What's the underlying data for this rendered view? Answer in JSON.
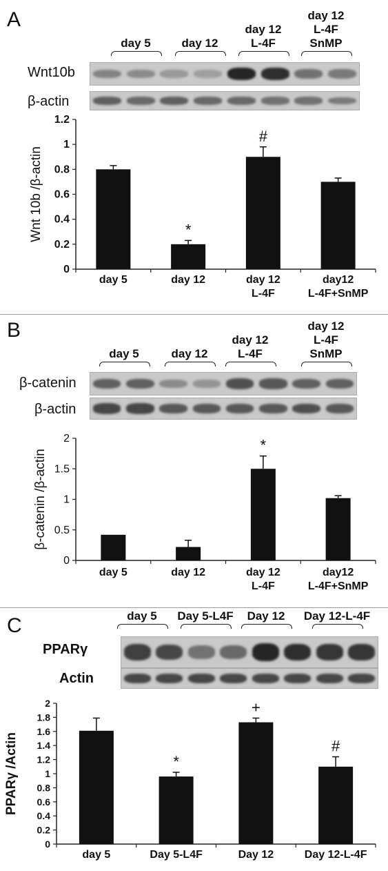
{
  "panels": [
    {
      "letter": "A",
      "group_labels": [
        "day 5",
        "day 12",
        "day 12\nL-4F",
        "day 12\nL-4F\nSnMP"
      ],
      "blot_labels": [
        "Wnt10b",
        "β-actin"
      ],
      "blot_intensity": [
        [
          0.35,
          0.3,
          0.22,
          0.18,
          0.9,
          0.85,
          0.45,
          0.4
        ],
        [
          0.55,
          0.5,
          0.55,
          0.5,
          0.5,
          0.45,
          0.45,
          0.4
        ]
      ],
      "chart_data": {
        "type": "bar",
        "categories": [
          "day 5",
          "day 12",
          "day 12\nL-4F",
          "day12\nL-4F+SnMP"
        ],
        "values": [
          0.8,
          0.2,
          0.9,
          0.7
        ],
        "errors": [
          0.03,
          0.03,
          0.08,
          0.03
        ],
        "annotations": [
          "",
          "*",
          "#",
          ""
        ],
        "ylabel": "Wnt 10b /β-actin",
        "ylim": [
          0,
          1.2
        ],
        "yticks": [
          "0",
          "0.2",
          "0.4",
          "0.6",
          "0.8",
          "1",
          "1.2"
        ],
        "ytick_values": [
          0,
          0.2,
          0.4,
          0.6,
          0.8,
          1,
          1.2
        ],
        "grid": false,
        "bar_color": "#111111"
      }
    },
    {
      "letter": "B",
      "group_labels": [
        "day 5",
        "day 12",
        "day 12\nL-4F",
        "day 12\nL-4F\nSnMP"
      ],
      "blot_labels": [
        "β-catenin",
        "β-actin"
      ],
      "blot_intensity": [
        [
          0.55,
          0.55,
          0.3,
          0.25,
          0.65,
          0.6,
          0.55,
          0.55
        ],
        [
          0.7,
          0.7,
          0.6,
          0.6,
          0.6,
          0.6,
          0.65,
          0.6
        ]
      ],
      "chart_data": {
        "type": "bar",
        "categories": [
          "day 5",
          "day 12",
          "day 12\nL-4F",
          "day12\nL-4F+SnMP"
        ],
        "values": [
          0.42,
          0.22,
          1.5,
          1.02
        ],
        "errors": [
          0,
          0.11,
          0.21,
          0.04
        ],
        "annotations": [
          "",
          "",
          "*",
          ""
        ],
        "ylabel": "β-catenin /β-actin",
        "ylim": [
          0,
          2
        ],
        "yticks": [
          "0",
          "0.5",
          "1",
          "1.5",
          "2"
        ],
        "ytick_values": [
          0,
          0.5,
          1,
          1.5,
          2
        ],
        "grid": false,
        "bar_color": "#111111"
      }
    },
    {
      "letter": "C",
      "group_labels": [
        "day 5",
        "Day 5-L4F",
        "Day 12",
        "Day 12-L-4F"
      ],
      "blot_labels": [
        "PPARγ",
        "Actin"
      ],
      "blot_intensity": [
        [
          0.75,
          0.7,
          0.45,
          0.5,
          0.9,
          0.85,
          0.8,
          0.8
        ],
        [
          0.7,
          0.7,
          0.7,
          0.7,
          0.7,
          0.7,
          0.7,
          0.7
        ]
      ],
      "chart_data": {
        "type": "bar",
        "categories": [
          "day 5",
          "Day 5-L4F",
          "Day 12",
          "Day 12-L-4F"
        ],
        "values": [
          1.61,
          0.96,
          1.73,
          1.1
        ],
        "errors": [
          0.18,
          0.06,
          0.06,
          0.14
        ],
        "annotations": [
          "",
          "*",
          "+",
          "#"
        ],
        "ylabel": "PPARγ /Actin",
        "ylim": [
          0,
          2
        ],
        "yticks": [
          "0",
          "0.2",
          "0.4",
          "0.6",
          "0.8",
          "1",
          "1.2",
          "1.4",
          "1.6",
          "1.8",
          "2"
        ],
        "ytick_values": [
          0,
          0.2,
          0.4,
          0.6,
          0.8,
          1,
          1.2,
          1.4,
          1.6,
          1.8,
          2
        ],
        "grid": false,
        "bar_color": "#111111"
      }
    }
  ]
}
